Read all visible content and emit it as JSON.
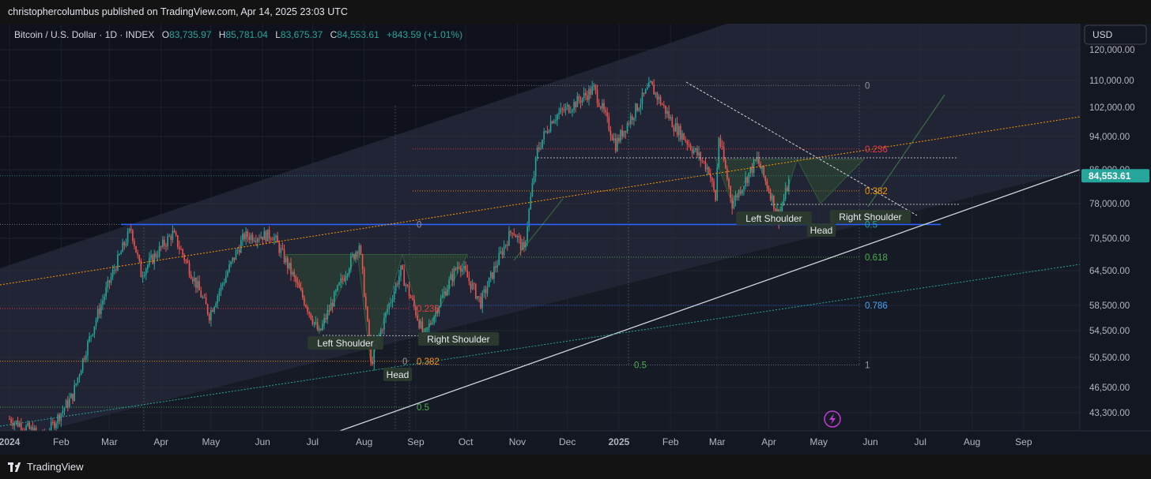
{
  "header": {
    "published": "christophercolumbus published on TradingView.com, Apr 14, 2025 23:03 UTC"
  },
  "legend": {
    "symbol": "Bitcoin / U.S. Dollar · 1D · INDEX",
    "o_label": "O",
    "o_value": "83,735.97",
    "h_label": "H",
    "h_value": "85,781.04",
    "l_label": "L",
    "l_value": "83,675.37",
    "c_label": "C",
    "c_value": "84,553.61",
    "change": "+843.59 (+1.01%)"
  },
  "currency": "USD",
  "footer": {
    "brand": "TradingView"
  },
  "colors": {
    "up": "#26a69a",
    "down": "#ef5350",
    "price_tag": "#26a69a",
    "fib_0236": "#f23645",
    "fib_0382": "#ff9800",
    "fib_0618": "#4caf50",
    "fib_0786": "#2962ff",
    "neckline": "#2962ff",
    "pattern_fill": "#2e4a32"
  },
  "chart_data": {
    "type": "candlestick",
    "title": "",
    "last_price_label": "84,553.61",
    "y_axis_labels": [
      "120,000.00",
      "110,000.00",
      "102,000.00",
      "94,000.00",
      "86,000.00",
      "78,000.00",
      "70,500.00",
      "64,500.00",
      "58,500.00",
      "54,500.00",
      "50,500.00",
      "46,500.00",
      "43,300.00"
    ],
    "x_axis_labels": [
      "2024",
      "Feb",
      "Mar",
      "Apr",
      "May",
      "Jun",
      "Jul",
      "Aug",
      "Sep",
      "Oct",
      "Nov",
      "Dec",
      "2025",
      "Feb",
      "Mar",
      "Apr",
      "May",
      "Jun",
      "Jul",
      "Aug",
      "Sep"
    ],
    "price_keypoints": [
      [
        "2024-01-01",
        42500
      ],
      [
        "2024-01-22",
        40200
      ],
      [
        "2024-02-08",
        45500
      ],
      [
        "2024-02-28",
        61000
      ],
      [
        "2024-03-14",
        72500
      ],
      [
        "2024-03-20",
        64000
      ],
      [
        "2024-04-08",
        71500
      ],
      [
        "2024-04-30",
        57000
      ],
      [
        "2024-05-21",
        71000
      ],
      [
        "2024-06-07",
        71200
      ],
      [
        "2024-06-24",
        60500
      ],
      [
        "2024-07-05",
        54000
      ],
      [
        "2024-07-29",
        69500
      ],
      [
        "2024-08-05",
        49500
      ],
      [
        "2024-08-23",
        64500
      ],
      [
        "2024-09-06",
        53500
      ],
      [
        "2024-09-27",
        66000
      ],
      [
        "2024-10-10",
        59000
      ],
      [
        "2024-10-29",
        72500
      ],
      [
        "2024-11-05",
        68000
      ],
      [
        "2024-11-13",
        90500
      ],
      [
        "2024-11-22",
        99000
      ],
      [
        "2024-12-05",
        103000
      ],
      [
        "2024-12-17",
        107500
      ],
      [
        "2024-12-30",
        92000
      ],
      [
        "2025-01-20",
        108500
      ],
      [
        "2025-02-03",
        97000
      ],
      [
        "2025-02-24",
        86000
      ],
      [
        "2025-02-28",
        79000
      ],
      [
        "2025-03-02",
        94000
      ],
      [
        "2025-03-10",
        78000
      ],
      [
        "2025-03-25",
        88500
      ],
      [
        "2025-04-07",
        75000
      ],
      [
        "2025-04-14",
        84553.61
      ]
    ],
    "patterns": [
      {
        "name": "Left Shoulder",
        "label": "Left Shoulder"
      },
      {
        "name": "Head",
        "label": "Head"
      },
      {
        "name": "Right Shoulder",
        "label": "Right Shoulder"
      },
      {
        "name": "Left Shoulder 2025",
        "label": "Left Shoulder"
      },
      {
        "name": "Head 2025",
        "label": "Head"
      },
      {
        "name": "Right Shoulder 2025",
        "label": "Right Shoulder"
      }
    ],
    "fib_2024": {
      "levels": [
        {
          "ratio": "0",
          "price": 73500
        },
        {
          "ratio": "0.236",
          "price": 58000
        },
        {
          "ratio": "0.382",
          "price": 50000
        },
        {
          "ratio": "0.5",
          "price": 44000
        }
      ],
      "labels": {
        "top": "0",
        "l236": "0.236",
        "l382": "0.382",
        "l5": "0.5",
        "bottom_zero": "0"
      }
    },
    "fib_2025": {
      "levels": [
        {
          "ratio": "0",
          "price": 108500
        },
        {
          "ratio": "0.236",
          "price": 91000
        },
        {
          "ratio": "0.382",
          "price": 81000
        },
        {
          "ratio": "0.5",
          "price": 73500
        },
        {
          "ratio": "0.618",
          "price": 67000
        },
        {
          "ratio": "0.786",
          "price": 58500
        },
        {
          "ratio": "1",
          "price": 49500
        }
      ],
      "labels": {
        "l0": "0",
        "l236": "0.236",
        "l382": "0.382",
        "l5": "0.5",
        "l618": "0.618",
        "l786": "0.786",
        "l1": "1",
        "mid5": "0.5"
      }
    },
    "neckline_price": 73500,
    "grid": true,
    "legend_placement": "top-left"
  }
}
